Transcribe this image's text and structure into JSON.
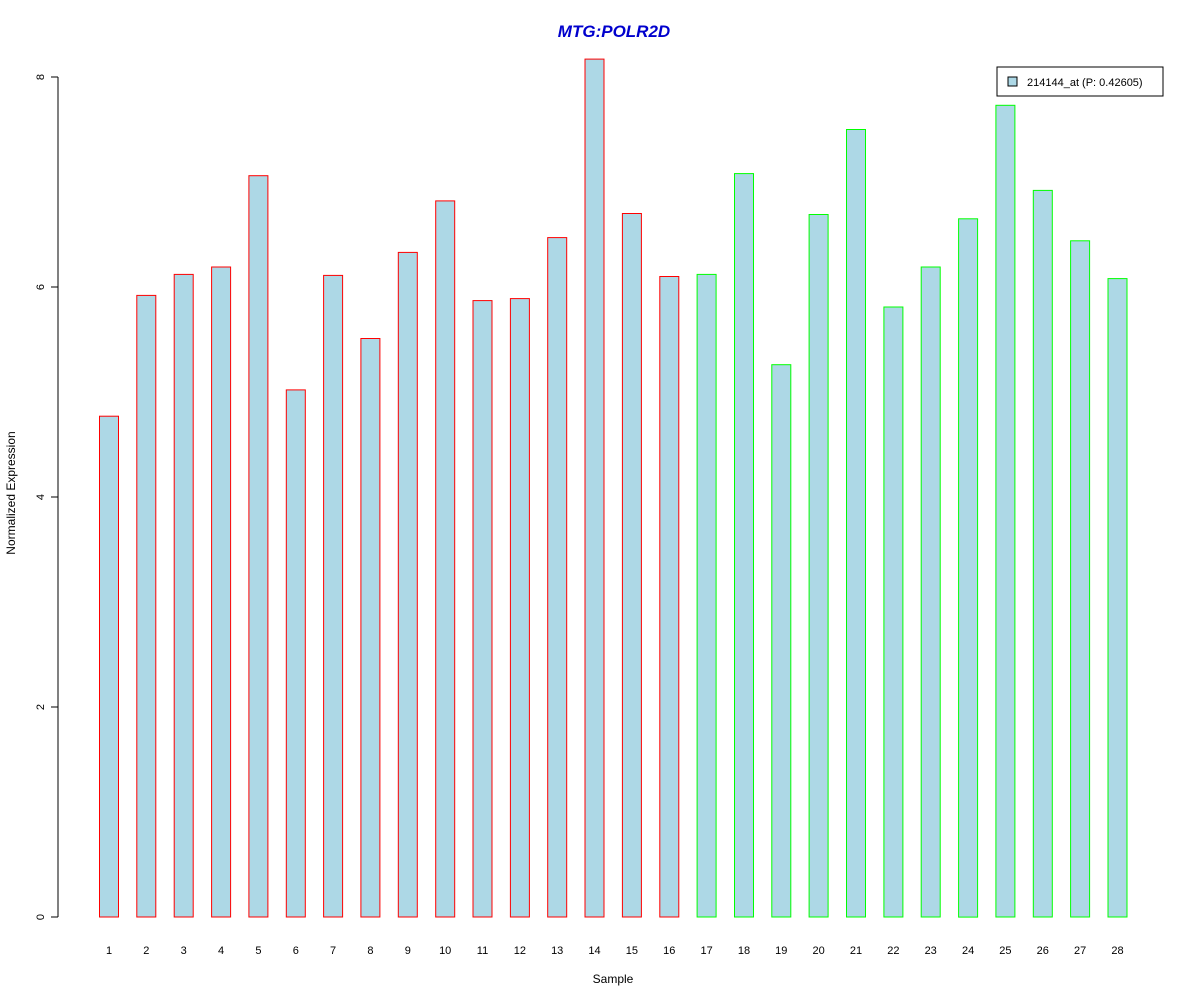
{
  "chart_data": {
    "type": "bar",
    "title": "MTG:POLR2D",
    "xlabel": "Sample",
    "ylabel": "Normalized Expression",
    "categories": [
      "1",
      "2",
      "3",
      "4",
      "5",
      "6",
      "7",
      "8",
      "9",
      "10",
      "11",
      "12",
      "13",
      "14",
      "15",
      "16",
      "17",
      "18",
      "19",
      "20",
      "21",
      "22",
      "23",
      "24",
      "25",
      "26",
      "27",
      "28"
    ],
    "series": [
      {
        "name": "214144_at (P: 0.42605)",
        "values": [
          4.77,
          5.92,
          6.12,
          6.19,
          7.06,
          5.02,
          6.11,
          5.51,
          6.33,
          6.82,
          5.87,
          5.89,
          6.47,
          8.17,
          6.7,
          6.1,
          6.12,
          7.08,
          5.26,
          6.69,
          7.5,
          5.81,
          6.19,
          6.65,
          7.73,
          6.92,
          6.44,
          6.08
        ]
      }
    ],
    "group_border_colors": [
      "#ff0000",
      "#ff0000",
      "#ff0000",
      "#ff0000",
      "#ff0000",
      "#ff0000",
      "#ff0000",
      "#ff0000",
      "#ff0000",
      "#ff0000",
      "#ff0000",
      "#ff0000",
      "#ff0000",
      "#ff0000",
      "#ff0000",
      "#ff0000",
      "#00ff00",
      "#00ff00",
      "#00ff00",
      "#00ff00",
      "#00ff00",
      "#00ff00",
      "#00ff00",
      "#00ff00",
      "#00ff00",
      "#00ff00",
      "#00ff00",
      "#00ff00"
    ],
    "bar_fill": "#add8e6",
    "title_color": "#0000cd",
    "yticks": [
      0,
      2,
      4,
      6,
      8
    ],
    "ylim": [
      0,
      8.2
    ],
    "grid": false,
    "legend_position": "top-right"
  }
}
